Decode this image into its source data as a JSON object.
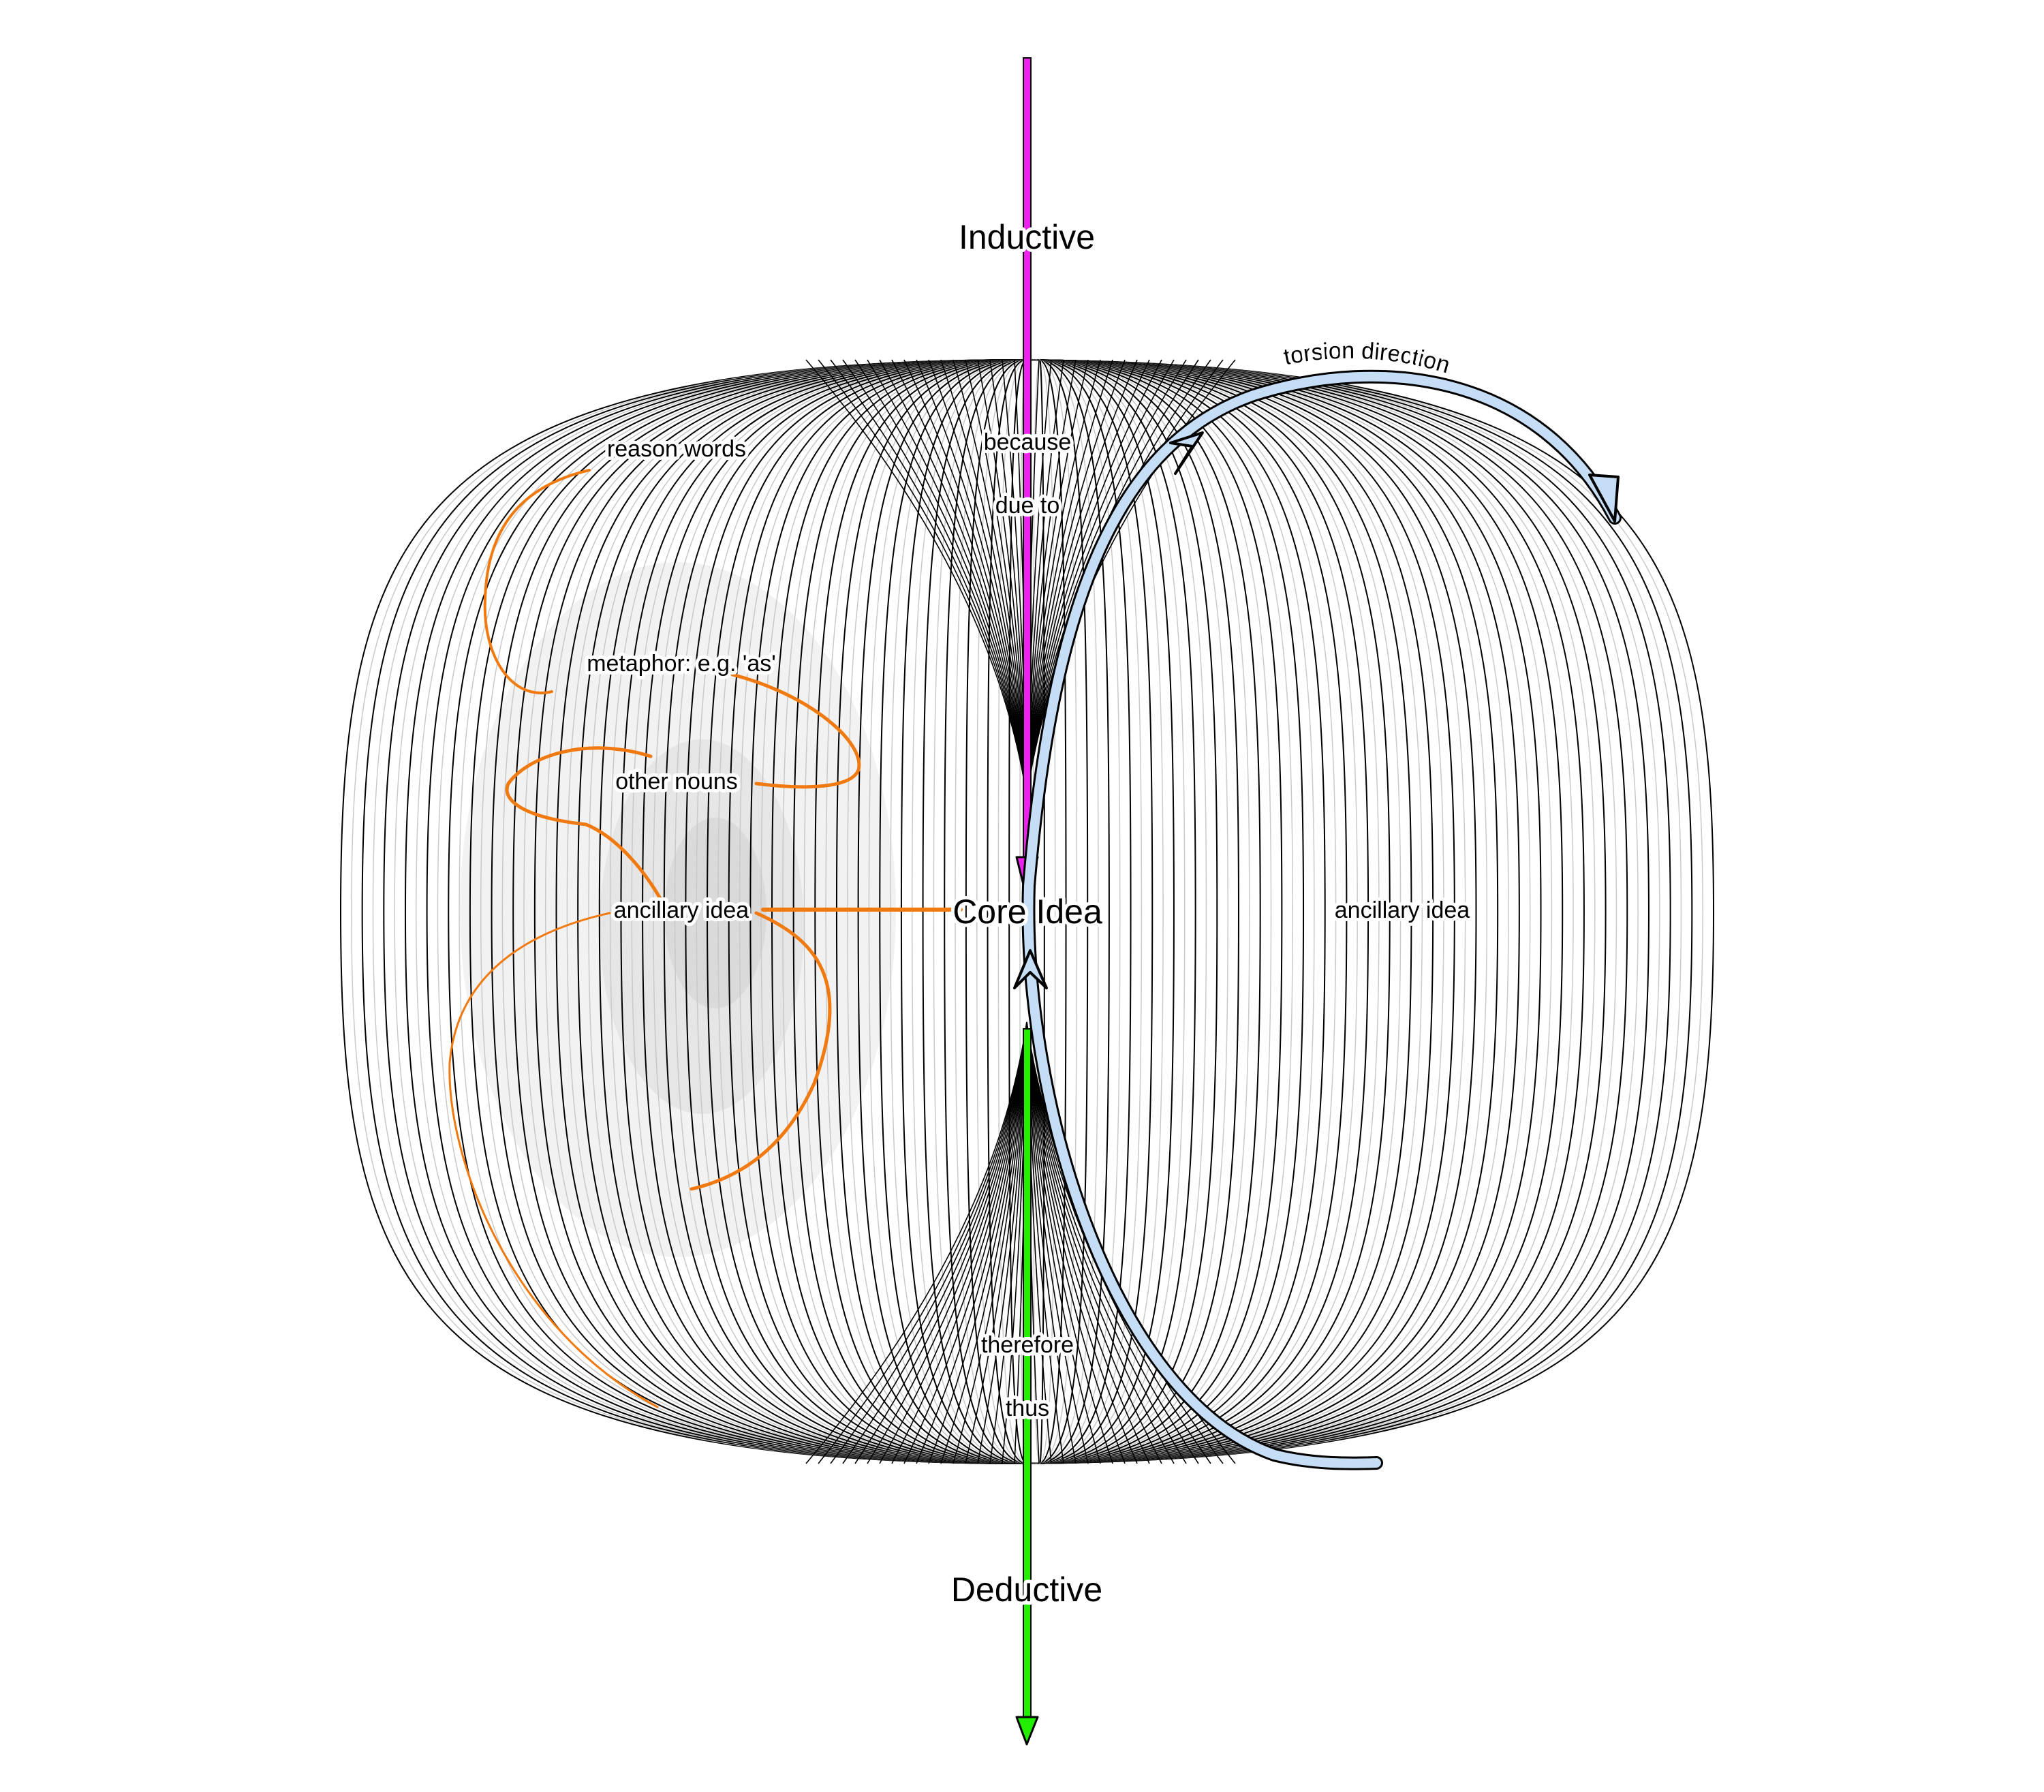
{
  "axis": {
    "top_label": "Inductive",
    "bottom_label": "Deductive",
    "top_color": "#ee22ee",
    "bottom_color": "#22ee00"
  },
  "center": {
    "label": "Core Idea"
  },
  "connectors_top": [
    "because",
    "due to"
  ],
  "connectors_bottom": [
    "therefore",
    "thus"
  ],
  "left_column": {
    "reason_words": "reason words",
    "metaphor": "metaphor: e.g. 'as'",
    "other_nouns": "other nouns",
    "ancillary": "ancillary idea"
  },
  "right_label": "ancillary idea",
  "torsion": {
    "label": "torsion direction",
    "color": "#c6ddf6"
  },
  "colors": {
    "accent_orange": "#f07a10",
    "rings": "#000000"
  }
}
